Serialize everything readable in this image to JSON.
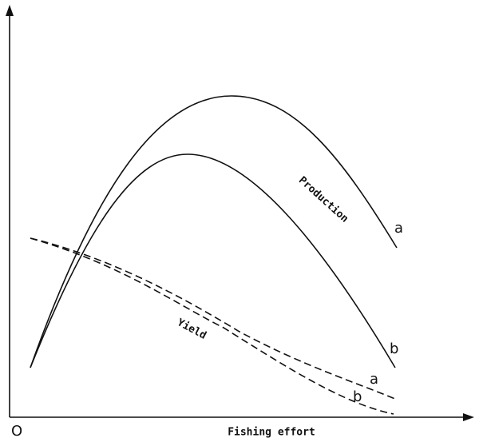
{
  "origin_label": "O",
  "x_axis_label": "Fishing effort",
  "curves": {
    "production": {
      "label": "Production",
      "a": "a",
      "b": "b"
    },
    "yield": {
      "label": "Yield",
      "a": "a",
      "b": "b"
    }
  }
}
